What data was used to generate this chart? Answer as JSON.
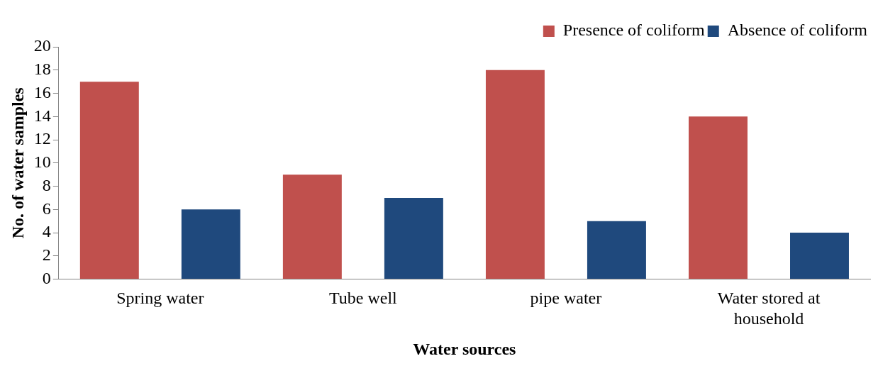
{
  "chart_data": {
    "type": "bar",
    "xlabel": "Water sources",
    "ylabel": "No. of water samples",
    "categories": [
      "Spring water",
      "Tube well",
      "pipe water",
      "Water stored at household"
    ],
    "series": [
      {
        "name": "Presence of coliform",
        "color": "#c0504d",
        "values": [
          17,
          9,
          18,
          14
        ]
      },
      {
        "name": "Absence of coliform",
        "color": "#1f497d",
        "values": [
          6,
          7,
          5,
          4
        ]
      }
    ],
    "ylim": [
      0,
      20
    ],
    "yticks": [
      0,
      2,
      4,
      6,
      8,
      10,
      12,
      14,
      16,
      18,
      20
    ],
    "grid": false,
    "legend": "top right"
  }
}
